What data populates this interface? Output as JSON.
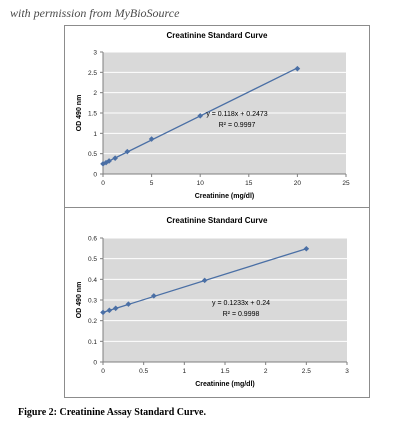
{
  "watermark": "with permission from MyBioSource",
  "caption": "Figure 2: Creatinine Assay Standard Curve.",
  "colors": {
    "plot_background": "#d9d9d9",
    "gridline": "#ffffff",
    "series": "#4a6fa5",
    "axis": "#7f7f7f"
  },
  "chart_data": [
    {
      "type": "scatter",
      "title": "Creatinine Standard Curve",
      "xlabel": "Creatinine (mg/dl)",
      "ylabel": "OD 490 nm",
      "xlim": [
        0,
        25
      ],
      "ylim": [
        0,
        3
      ],
      "x_ticks": [
        "0",
        "5",
        "10",
        "15",
        "20",
        "25"
      ],
      "y_ticks": [
        "0",
        "0.5",
        "1",
        "1.5",
        "2",
        "2.5",
        "3"
      ],
      "grid": true,
      "series": [
        {
          "x": [
            0,
            0.3125,
            0.625,
            1.25,
            2.5,
            5,
            10,
            20
          ],
          "y": [
            0.25,
            0.28,
            0.32,
            0.39,
            0.55,
            0.86,
            1.43,
            2.59
          ]
        }
      ],
      "trendline": {
        "slope": 0.118,
        "intercept": 0.2473
      },
      "annotations": [
        "y = 0.118x + 0.2473",
        "R² = 0.9997"
      ]
    },
    {
      "type": "scatter",
      "title": "Creatinine Standard Curve",
      "xlabel": "Creatinine (mg/dl)",
      "ylabel": "OD 490 nm",
      "xlim": [
        0,
        3
      ],
      "ylim": [
        0,
        0.6
      ],
      "x_ticks": [
        "0",
        "0.5",
        "1",
        "1.5",
        "2",
        "2.5",
        "3"
      ],
      "y_ticks": [
        "0",
        "0.1",
        "0.2",
        "0.3",
        "0.4",
        "0.5",
        "0.6"
      ],
      "grid": true,
      "series": [
        {
          "x": [
            0,
            0.078,
            0.156,
            0.3125,
            0.625,
            1.25,
            2.5
          ],
          "y": [
            0.24,
            0.25,
            0.26,
            0.28,
            0.32,
            0.395,
            0.548
          ]
        }
      ],
      "trendline": {
        "slope": 0.1233,
        "intercept": 0.24
      },
      "annotations": [
        "y = 0.1233x + 0.24",
        "R² = 0.9998"
      ]
    }
  ]
}
